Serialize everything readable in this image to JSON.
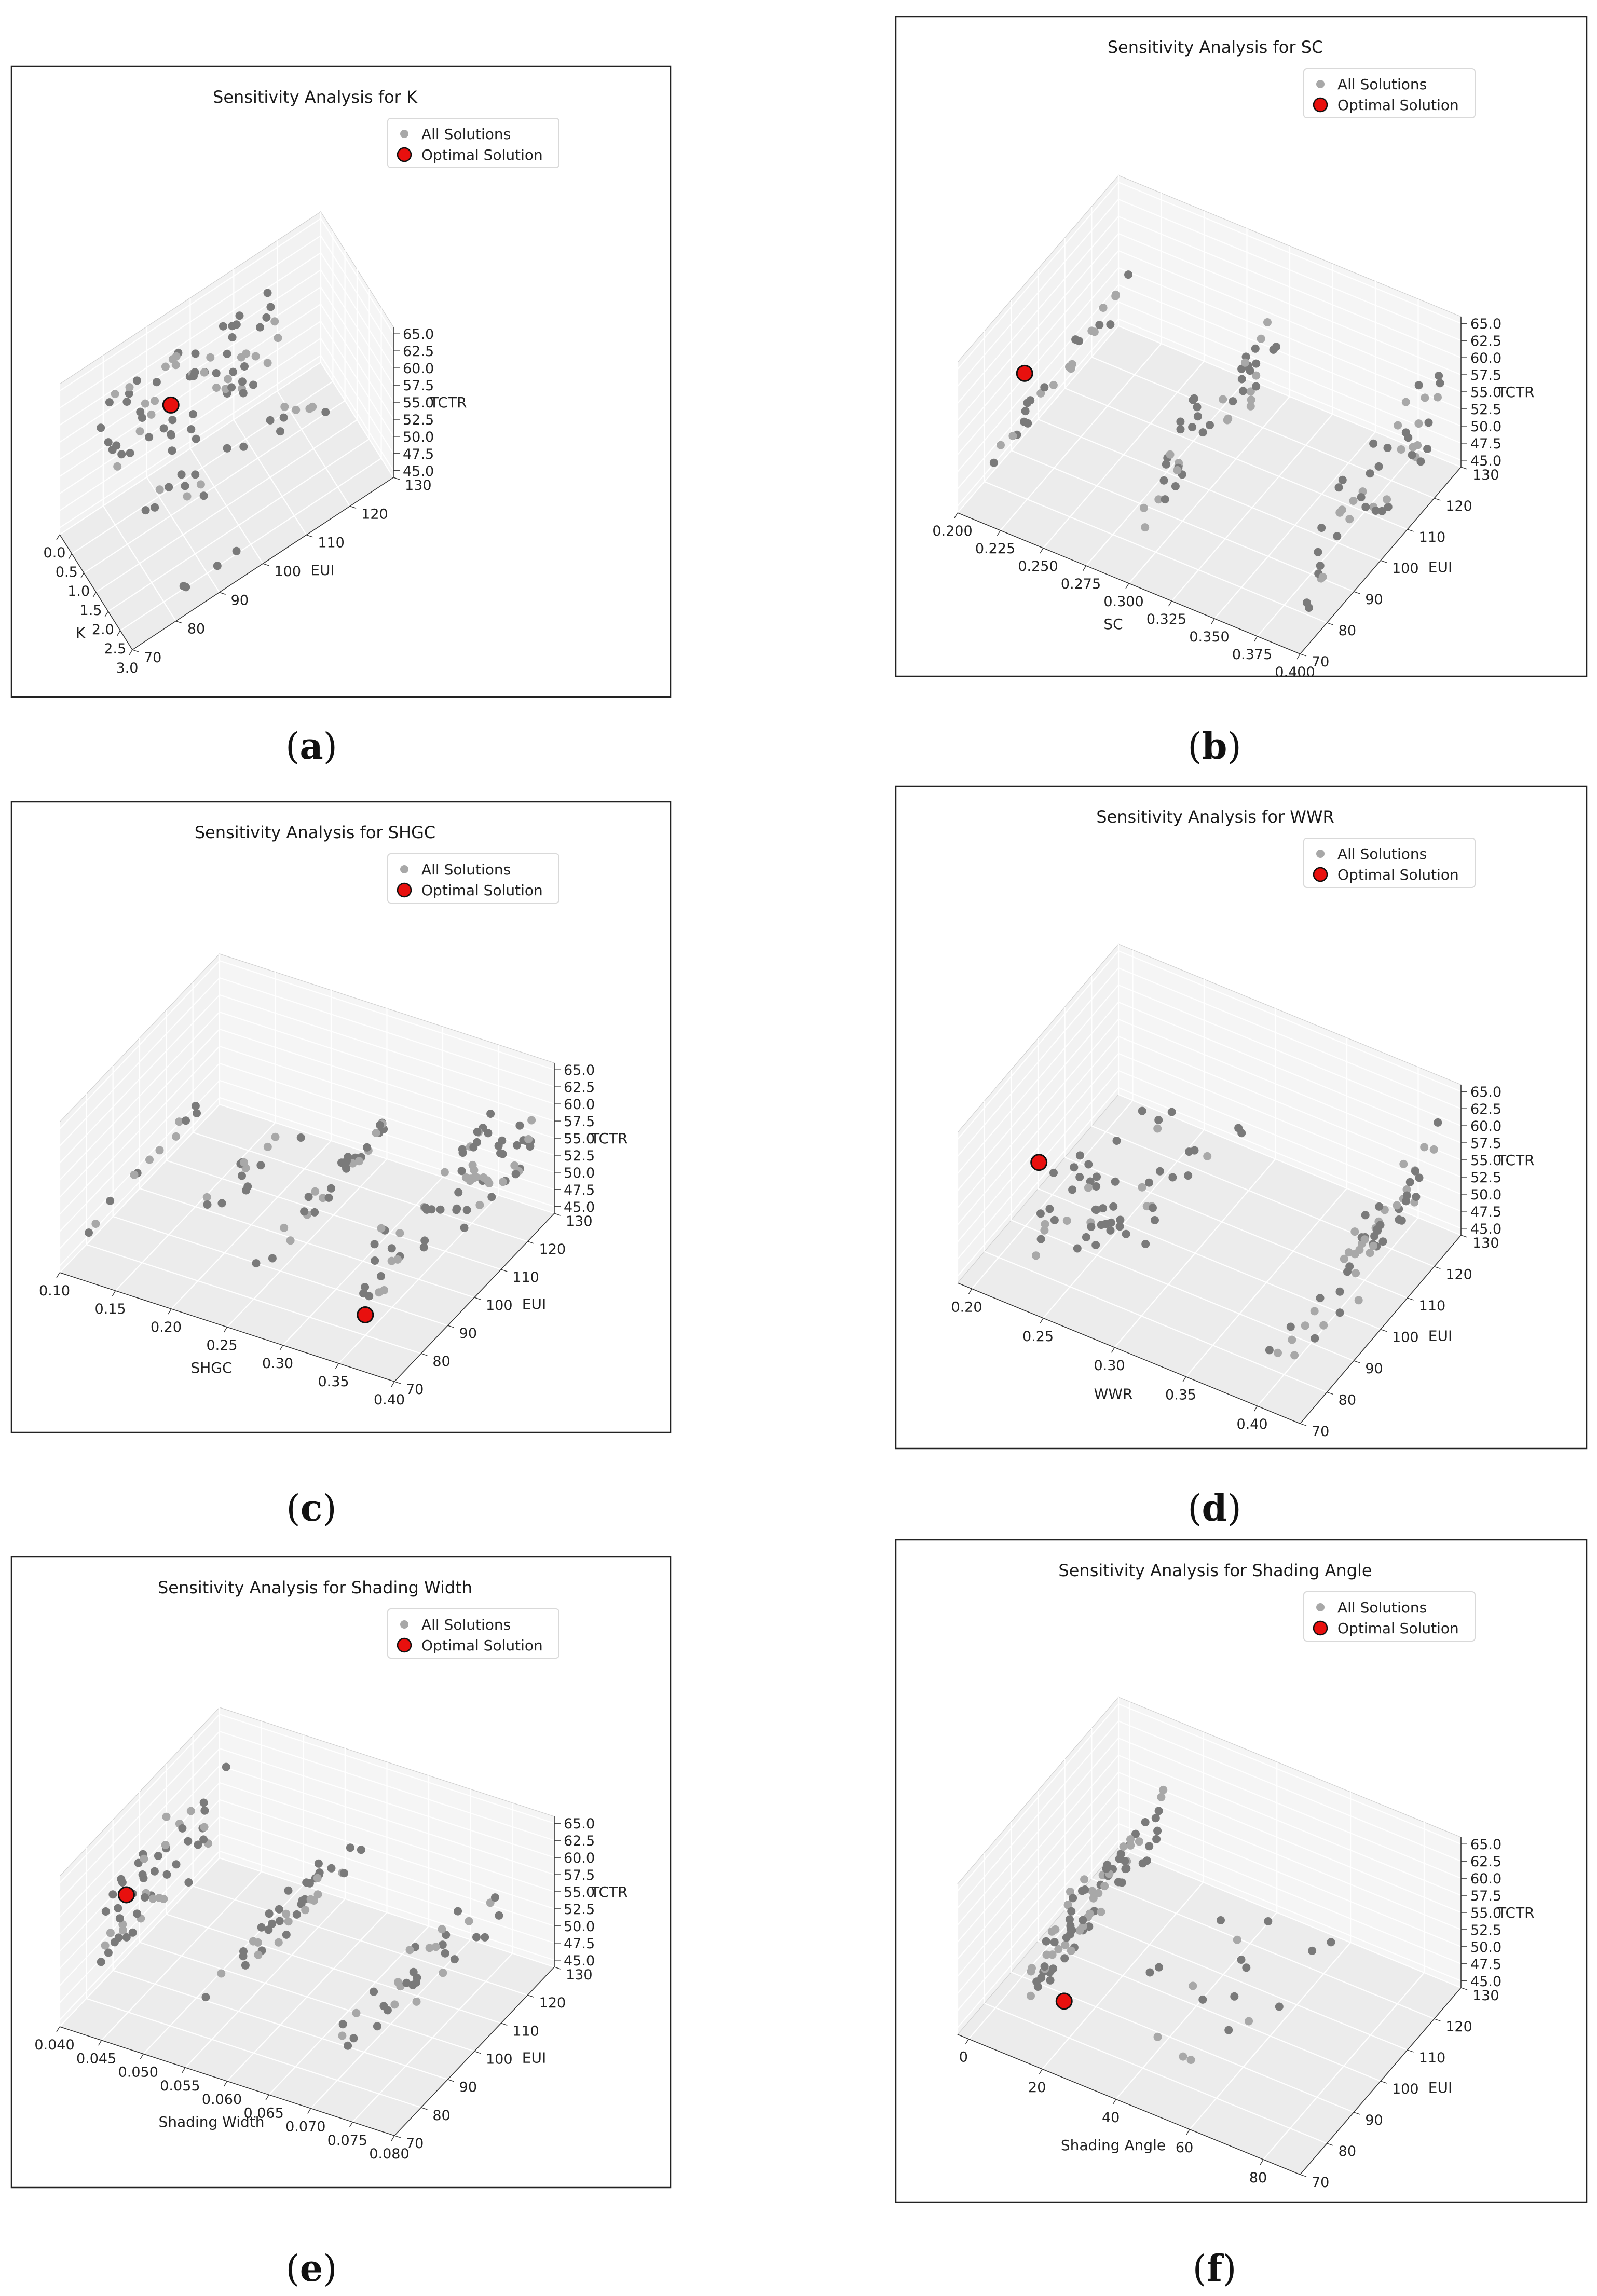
{
  "chart_data": [
    {
      "type": "scatter3d",
      "caption_letter": "a",
      "title": "Sensitivity Analysis for K",
      "xlabel": "K",
      "ylabel": "EUI",
      "zlabel": "TCTR",
      "x_ticks": [
        "0.0",
        "0.5",
        "1.0",
        "1.5",
        "2.0",
        "2.5",
        "3.0"
      ],
      "xlim": [
        0,
        3
      ],
      "y_ticks": [
        "70",
        "80",
        "90",
        "100",
        "110",
        "120",
        "130"
      ],
      "ylim": [
        70,
        130
      ],
      "z_ticks": [
        "45.0",
        "47.5",
        "50.0",
        "52.5",
        "55.0",
        "57.5",
        "60.0",
        "62.5",
        "65.0"
      ],
      "zlim": [
        44,
        66
      ],
      "legend": {
        "all": "All Solutions",
        "optimal": "Optimal Solution"
      },
      "optimal": {
        "x": 0.1,
        "y": 95,
        "z": 53
      },
      "clusters": [
        {
          "x": [
            0.0,
            0.3
          ],
          "y": [
            78,
            120
          ],
          "z": [
            45,
            64
          ],
          "n": 70
        },
        {
          "x": [
            0.3,
            1.8
          ],
          "y": [
            80,
            125
          ],
          "z": [
            44,
            50
          ],
          "n": 20
        },
        {
          "x": [
            2.5,
            3.0
          ],
          "y": [
            78,
            100
          ],
          "z": [
            44,
            48
          ],
          "n": 4
        }
      ]
    },
    {
      "type": "scatter3d",
      "caption_letter": "b",
      "title": "Sensitivity Analysis for SC",
      "xlabel": "SC",
      "ylabel": "EUI",
      "zlabel": "TCTR",
      "x_ticks": [
        "0.200",
        "0.225",
        "0.250",
        "0.275",
        "0.300",
        "0.325",
        "0.350",
        "0.375",
        "0.400"
      ],
      "xlim": [
        0.2,
        0.4
      ],
      "y_ticks": [
        "70",
        "80",
        "90",
        "100",
        "110",
        "120",
        "130"
      ],
      "ylim": [
        70,
        130
      ],
      "z_ticks": [
        "45.0",
        "47.5",
        "50.0",
        "52.5",
        "55.0",
        "57.5",
        "60.0",
        "62.5",
        "65.0"
      ],
      "zlim": [
        44,
        66
      ],
      "legend": {
        "all": "All Solutions",
        "optimal": "Optimal Solution"
      },
      "optimal": {
        "x": 0.2,
        "y": 95,
        "z": 53
      },
      "clusters": [
        {
          "x": [
            0.2,
            0.22
          ],
          "y": [
            80,
            125
          ],
          "z": [
            45,
            58
          ],
          "n": 25
        },
        {
          "x": [
            0.29,
            0.31
          ],
          "y": [
            78,
            125
          ],
          "z": [
            45,
            64
          ],
          "n": 45
        },
        {
          "x": [
            0.39,
            0.4
          ],
          "y": [
            78,
            125
          ],
          "z": [
            45,
            64
          ],
          "n": 45
        }
      ]
    },
    {
      "type": "scatter3d",
      "caption_letter": "c",
      "title": "Sensitivity Analysis for SHGC",
      "xlabel": "SHGC",
      "ylabel": "EUI",
      "zlabel": "TCTR",
      "x_ticks": [
        "0.10",
        "0.15",
        "0.20",
        "0.25",
        "0.30",
        "0.35",
        "0.40"
      ],
      "xlim": [
        0.1,
        0.4
      ],
      "y_ticks": [
        "70",
        "80",
        "90",
        "100",
        "110",
        "120",
        "130"
      ],
      "ylim": [
        70,
        130
      ],
      "z_ticks": [
        "45.0",
        "47.5",
        "50.0",
        "52.5",
        "55.0",
        "57.5",
        "60.0",
        "62.5",
        "65.0"
      ],
      "zlim": [
        44,
        66
      ],
      "legend": {
        "all": "All Solutions",
        "optimal": "Optimal Solution"
      },
      "optimal": {
        "x": 0.35,
        "y": 80,
        "z": 47
      },
      "clusters": [
        {
          "x": [
            0.1,
            0.11
          ],
          "y": [
            80,
            120
          ],
          "z": [
            45,
            50
          ],
          "n": 12
        },
        {
          "x": [
            0.15,
            0.2
          ],
          "y": [
            95,
            125
          ],
          "z": [
            44,
            48
          ],
          "n": 14
        },
        {
          "x": [
            0.24,
            0.27
          ],
          "y": [
            80,
            125
          ],
          "z": [
            45,
            55
          ],
          "n": 30
        },
        {
          "x": [
            0.34,
            0.36
          ],
          "y": [
            78,
            125
          ],
          "z": [
            45,
            60
          ],
          "n": 40
        },
        {
          "x": [
            0.39,
            0.4
          ],
          "y": [
            95,
            125
          ],
          "z": [
            52,
            64
          ],
          "n": 30
        }
      ]
    },
    {
      "type": "scatter3d",
      "caption_letter": "d",
      "title": "Sensitivity Analysis for WWR",
      "xlabel": "WWR",
      "ylabel": "EUI",
      "zlabel": "TCTR",
      "x_ticks": [
        "0.20",
        "0.25",
        "0.30",
        "0.35",
        "0.40"
      ],
      "xlim": [
        0.19,
        0.43
      ],
      "y_ticks": [
        "70",
        "80",
        "90",
        "100",
        "110",
        "120",
        "130"
      ],
      "ylim": [
        70,
        130
      ],
      "z_ticks": [
        "45.0",
        "47.5",
        "50.0",
        "52.5",
        "55.0",
        "57.5",
        "60.0",
        "62.5",
        "65.0"
      ],
      "zlim": [
        44,
        66
      ],
      "legend": {
        "all": "All Solutions",
        "optimal": "Optimal Solution"
      },
      "optimal": {
        "x": 0.2,
        "y": 95,
        "z": 51
      },
      "clusters": [
        {
          "x": [
            0.19,
            0.3
          ],
          "y": [
            80,
            125
          ],
          "z": [
            44,
            52
          ],
          "n": 55
        },
        {
          "x": [
            0.38,
            0.42
          ],
          "y": [
            80,
            100
          ],
          "z": [
            44,
            48
          ],
          "n": 12
        },
        {
          "x": [
            0.4,
            0.43
          ],
          "y": [
            95,
            125
          ],
          "z": [
            46,
            64
          ],
          "n": 45
        }
      ]
    },
    {
      "type": "scatter3d",
      "caption_letter": "e",
      "title": "Sensitivity Analysis for Shading Width",
      "xlabel": "Shading Width",
      "ylabel": "EUI",
      "zlabel": "TCTR",
      "x_ticks": [
        "0.040",
        "0.045",
        "0.050",
        "0.055",
        "0.060",
        "0.065",
        "0.070",
        "0.075",
        "0.080"
      ],
      "xlim": [
        0.04,
        0.08
      ],
      "y_ticks": [
        "70",
        "80",
        "90",
        "100",
        "110",
        "120",
        "130"
      ],
      "ylim": [
        70,
        130
      ],
      "z_ticks": [
        "45.0",
        "47.5",
        "50.0",
        "52.5",
        "55.0",
        "57.5",
        "60.0",
        "62.5",
        "65.0"
      ],
      "zlim": [
        44,
        66
      ],
      "legend": {
        "all": "All Solutions",
        "optimal": "Optimal Solution"
      },
      "optimal": {
        "x": 0.04,
        "y": 95,
        "z": 53
      },
      "clusters": [
        {
          "x": [
            0.04,
            0.043
          ],
          "y": [
            80,
            125
          ],
          "z": [
            45,
            64
          ],
          "n": 50
        },
        {
          "x": [
            0.05,
            0.062
          ],
          "y": [
            80,
            125
          ],
          "z": [
            44,
            60
          ],
          "n": 40
        },
        {
          "x": [
            0.065,
            0.08
          ],
          "y": [
            80,
            125
          ],
          "z": [
            44,
            60
          ],
          "n": 35
        }
      ]
    },
    {
      "type": "scatter3d",
      "caption_letter": "f",
      "title": "Sensitivity Analysis for Shading Angle",
      "xlabel": "Shading Angle",
      "ylabel": "EUI",
      "zlabel": "TCTR",
      "x_ticks": [
        "0",
        "20",
        "40",
        "60",
        "80"
      ],
      "xlim": [
        -3,
        90
      ],
      "y_ticks": [
        "70",
        "80",
        "90",
        "100",
        "110",
        "120",
        "130"
      ],
      "ylim": [
        70,
        130
      ],
      "z_ticks": [
        "45.0",
        "47.5",
        "50.0",
        "52.5",
        "55.0",
        "57.5",
        "60.0",
        "62.5",
        "65.0"
      ],
      "zlim": [
        44,
        66
      ],
      "legend": {
        "all": "All Solutions",
        "optimal": "Optimal Solution"
      },
      "optimal": {
        "x": 15,
        "y": 85,
        "z": 46
      },
      "clusters": [
        {
          "x": [
            5,
            20
          ],
          "y": [
            78,
            125
          ],
          "z": [
            44,
            64
          ],
          "n": 80
        },
        {
          "x": [
            20,
            70
          ],
          "y": [
            80,
            125
          ],
          "z": [
            44,
            50
          ],
          "n": 18
        }
      ]
    }
  ]
}
